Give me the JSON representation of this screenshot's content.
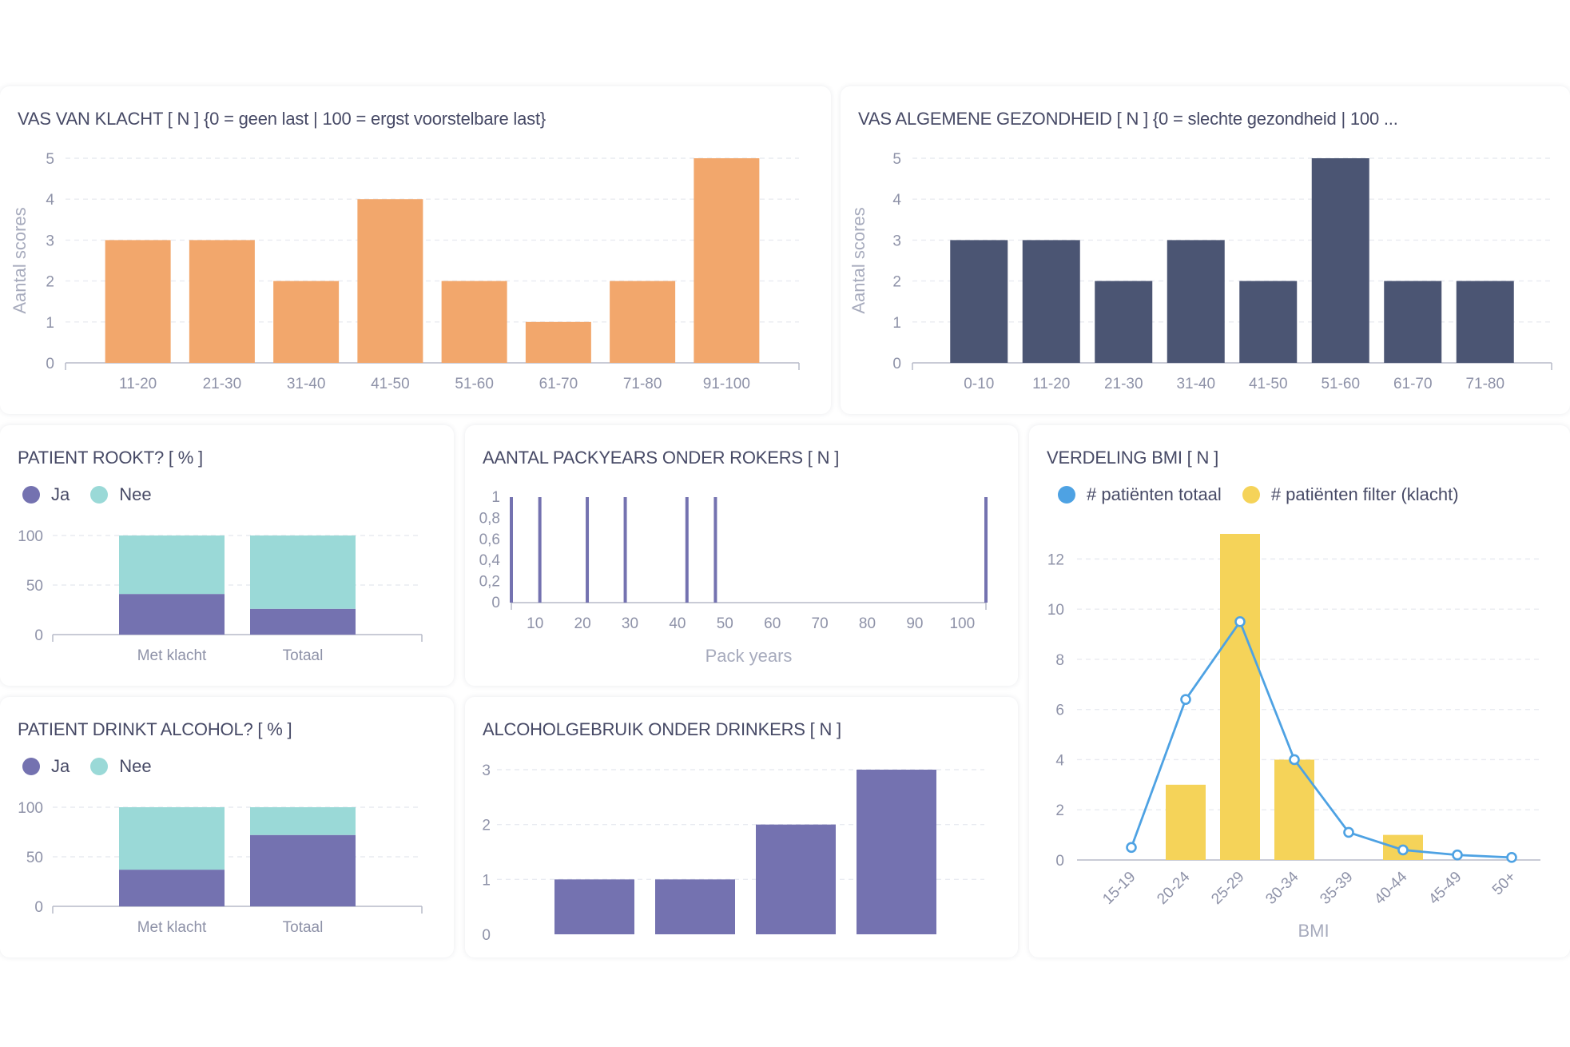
{
  "colors": {
    "orange": "#f2a76c",
    "navy": "#4b5573",
    "purple": "#7472b0",
    "teal": "#9ad9d7",
    "blue": "#4ea2e3",
    "yellow": "#f5d359"
  },
  "vas_klacht": {
    "title": "VAS VAN KLACHT [ N ] {0 = geen last | 100 = ergst voorstelbare last}",
    "chart_data": {
      "type": "bar",
      "categories": [
        "11-20",
        "21-30",
        "31-40",
        "41-50",
        "51-60",
        "61-70",
        "71-80",
        "91-100"
      ],
      "values": [
        3,
        3,
        2,
        4,
        2,
        1,
        2,
        5
      ],
      "ylabel": "Aantal scores",
      "ylim": [
        0,
        5
      ],
      "yticks": [
        0,
        1,
        2,
        3,
        4,
        5
      ],
      "color": "orange",
      "grid": true
    }
  },
  "vas_gezondheid": {
    "title": "VAS ALGEMENE GEZONDHEID [ N ] {0 = slechte gezondheid | 100 ...",
    "chart_data": {
      "type": "bar",
      "categories": [
        "0-10",
        "11-20",
        "21-30",
        "31-40",
        "41-50",
        "51-60",
        "61-70",
        "71-80"
      ],
      "values": [
        3,
        3,
        2,
        3,
        2,
        5,
        2,
        2
      ],
      "ylabel": "Aantal scores",
      "ylim": [
        0,
        5
      ],
      "yticks": [
        0,
        1,
        2,
        3,
        4,
        5
      ],
      "color": "navy",
      "grid": true
    }
  },
  "rookt": {
    "title": "PATIENT ROOKT? [ % ]",
    "legend": [
      {
        "label": "Ja",
        "color": "purple"
      },
      {
        "label": "Nee",
        "color": "teal"
      }
    ],
    "chart_data": {
      "type": "bar",
      "stacked": true,
      "categories": [
        "Met klacht",
        "Totaal"
      ],
      "series": [
        {
          "name": "Ja",
          "values": [
            41,
            26
          ],
          "color": "purple"
        },
        {
          "name": "Nee",
          "values": [
            59,
            74
          ],
          "color": "teal"
        }
      ],
      "ylim": [
        0,
        100
      ],
      "yticks": [
        0,
        50,
        100
      ],
      "legend_position": "top-left"
    }
  },
  "packyears": {
    "title": "AANTAL PACKYEARS ONDER ROKERS [ N ]",
    "chart_data": {
      "type": "bar",
      "x": [
        5,
        11,
        21,
        29,
        42,
        48,
        105
      ],
      "values": [
        1,
        1,
        1,
        1,
        1,
        1,
        1
      ],
      "xlabel": "Pack years",
      "xlim": [
        5,
        105
      ],
      "xticks": [
        10,
        20,
        30,
        40,
        50,
        60,
        70,
        80,
        90,
        100
      ],
      "ylim": [
        0,
        1
      ],
      "yticks": [
        0,
        0.2,
        0.4,
        0.6,
        0.8,
        1
      ],
      "ytick_labels": [
        "0",
        "0,2",
        "0,4",
        "0,6",
        "0,8",
        "1"
      ],
      "color": "purple"
    }
  },
  "bmi": {
    "title": "VERDELING BMI [ N ]",
    "legend": [
      {
        "label": "# patiënten totaal",
        "color": "blue"
      },
      {
        "label": "# patiënten filter (klacht)",
        "color": "yellow"
      }
    ],
    "chart_data": {
      "type": "bar",
      "categories": [
        "15-19",
        "20-24",
        "25-29",
        "30-34",
        "35-39",
        "40-44",
        "45-49",
        "50+"
      ],
      "series": [
        {
          "name": "# patiënten totaal",
          "type": "line",
          "values": [
            0.5,
            6.4,
            9.5,
            4,
            1.1,
            0.4,
            0.2,
            0.1
          ],
          "color": "blue"
        },
        {
          "name": "# patiënten filter (klacht)",
          "type": "bar",
          "values": [
            0,
            3,
            13,
            4,
            0,
            1,
            0,
            0
          ],
          "color": "yellow"
        }
      ],
      "xlabel": "BMI",
      "ylim": [
        0,
        13
      ],
      "yticks": [
        0,
        2,
        4,
        6,
        8,
        10,
        12
      ],
      "legend_position": "top"
    }
  },
  "alcohol": {
    "title": "PATIENT DRINKT ALCOHOL? [ % ]",
    "legend": [
      {
        "label": "Ja",
        "color": "purple"
      },
      {
        "label": "Nee",
        "color": "teal"
      }
    ],
    "chart_data": {
      "type": "bar",
      "stacked": true,
      "categories": [
        "Met klacht",
        "Totaal"
      ],
      "series": [
        {
          "name": "Ja",
          "values": [
            37,
            72
          ],
          "color": "purple"
        },
        {
          "name": "Nee",
          "values": [
            63,
            28
          ],
          "color": "teal"
        }
      ],
      "ylim": [
        0,
        100
      ],
      "yticks": [
        0,
        50,
        100
      ],
      "legend_position": "top-left"
    }
  },
  "alcoholgebruik": {
    "title": "ALCOHOLGEBRUIK ONDER DRINKERS [ N ]",
    "chart_data": {
      "type": "bar",
      "categories": [
        "",
        "",
        "",
        ""
      ],
      "values": [
        1,
        1,
        2,
        3
      ],
      "ylim": [
        0,
        3
      ],
      "yticks": [
        0,
        1,
        2,
        3
      ],
      "color": "purple",
      "grid": true
    }
  }
}
